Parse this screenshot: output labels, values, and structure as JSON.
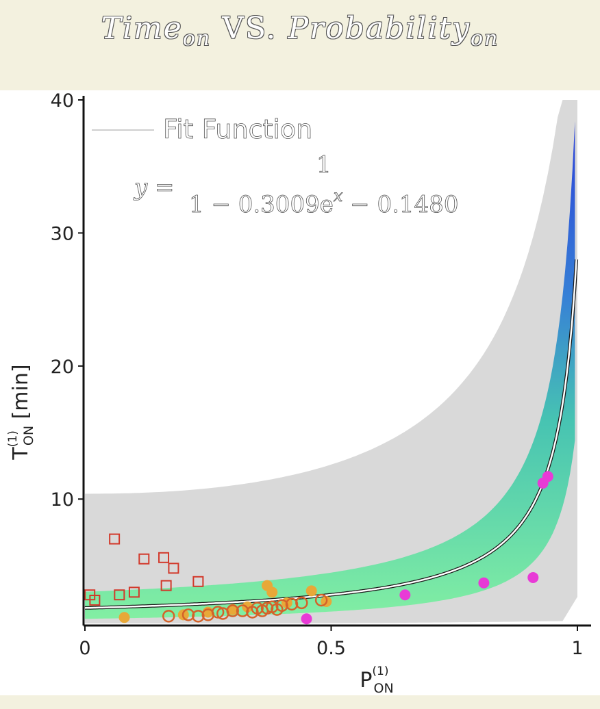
{
  "title": {
    "main": "Time",
    "sub1": "on",
    "vs": "VS.",
    "prob": "Probability",
    "sub2": "on"
  },
  "legend": {
    "label": "Fit Function"
  },
  "formula": {
    "lhs": "y =",
    "numerator": "1",
    "denominator": "1 − 0.3009e",
    "exp": "x",
    "tail": " − 0.1480"
  },
  "chart_data": {
    "type": "scatter",
    "xlabel": {
      "main": "P",
      "sup": "(1)",
      "sub": "ON"
    },
    "ylabel": {
      "main": "T",
      "sup": "(1)",
      "sub": "ON",
      "unit": " [min]"
    },
    "xlim": [
      0,
      1
    ],
    "ylim": [
      0.6,
      40
    ],
    "xticks": [
      {
        "v": 0,
        "label": "0"
      },
      {
        "v": 0.5,
        "label": "0.5"
      },
      {
        "v": 1,
        "label": "1"
      }
    ],
    "yticks": [
      {
        "v": 10,
        "label": "10"
      },
      {
        "v": 20,
        "label": "20"
      },
      {
        "v": 30,
        "label": "30"
      },
      {
        "v": 40,
        "label": "40"
      }
    ],
    "fit": {
      "a": 0.3009,
      "b": 0.148
    },
    "series": [
      {
        "marker": "square-open",
        "color": "#d2392b",
        "points": [
          [
            0.01,
            2.8
          ],
          [
            0.02,
            2.4
          ],
          [
            0.06,
            7.0
          ],
          [
            0.07,
            2.8
          ],
          [
            0.1,
            3.0
          ],
          [
            0.12,
            5.5
          ],
          [
            0.16,
            5.6
          ],
          [
            0.165,
            3.5
          ],
          [
            0.18,
            4.8
          ],
          [
            0.23,
            3.8
          ]
        ]
      },
      {
        "marker": "circle-filled",
        "color": "#e8a838",
        "points": [
          [
            0.08,
            1.1
          ],
          [
            0.2,
            1.3
          ],
          [
            0.25,
            1.5
          ],
          [
            0.3,
            1.7
          ],
          [
            0.33,
            1.9
          ],
          [
            0.37,
            3.5
          ],
          [
            0.38,
            3.0
          ],
          [
            0.41,
            2.2
          ],
          [
            0.46,
            3.1
          ],
          [
            0.49,
            2.3
          ]
        ]
      },
      {
        "marker": "circle-open",
        "color": "#d4622a",
        "points": [
          [
            0.17,
            1.2
          ],
          [
            0.21,
            1.3
          ],
          [
            0.23,
            1.2
          ],
          [
            0.25,
            1.3
          ],
          [
            0.27,
            1.5
          ],
          [
            0.28,
            1.4
          ],
          [
            0.3,
            1.6
          ],
          [
            0.32,
            1.6
          ],
          [
            0.34,
            1.5
          ],
          [
            0.35,
            1.8
          ],
          [
            0.36,
            1.6
          ],
          [
            0.37,
            1.8
          ],
          [
            0.38,
            1.9
          ],
          [
            0.39,
            1.7
          ],
          [
            0.4,
            2.0
          ],
          [
            0.42,
            2.1
          ],
          [
            0.44,
            2.2
          ],
          [
            0.48,
            2.4
          ]
        ]
      },
      {
        "marker": "circle-filled",
        "color": "#e83ad6",
        "points": [
          [
            0.45,
            1.0
          ],
          [
            0.65,
            2.8
          ],
          [
            0.81,
            3.7
          ],
          [
            0.91,
            4.1
          ],
          [
            0.93,
            11.2
          ],
          [
            0.94,
            11.7
          ]
        ]
      }
    ]
  }
}
